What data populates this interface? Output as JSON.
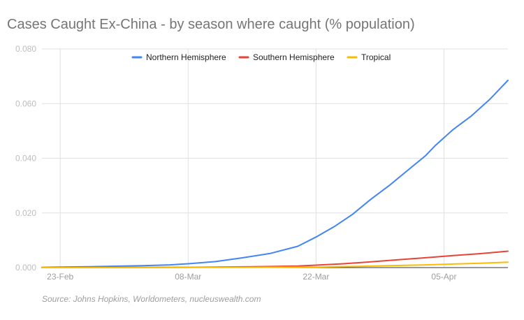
{
  "chart_data": {
    "type": "line",
    "title": "Cases Caught Ex-China - by season where caught (% population)",
    "source": "Source: Johns Hopkins, Worldometers, nucleuswealth.com",
    "xlabel": "",
    "ylabel": "",
    "x_start": "21-Feb",
    "x_end": "12-Apr",
    "x_ticks": [
      "23-Feb",
      "08-Mar",
      "22-Mar",
      "05-Apr"
    ],
    "y_ticks": [
      "0.000",
      "0.020",
      "0.040",
      "0.060",
      "0.080"
    ],
    "ylim": [
      0,
      0.08
    ],
    "grid": true,
    "legend_position": "top",
    "series": [
      {
        "name": "Northern Hemisphere",
        "color": "#4285f4",
        "x": [
          "21-Feb",
          "23-Feb",
          "26-Feb",
          "29-Feb",
          "03-Mar",
          "06-Mar",
          "08-Mar",
          "11-Mar",
          "14-Mar",
          "17-Mar",
          "20-Mar",
          "22-Mar",
          "24-Mar",
          "26-Mar",
          "28-Mar",
          "30-Mar",
          "01-Apr",
          "03-Apr",
          "04-Apr",
          "06-Apr",
          "08-Apr",
          "10-Apr",
          "12-Apr"
        ],
        "values": [
          0.0001,
          0.0002,
          0.0003,
          0.0005,
          0.0007,
          0.001,
          0.0014,
          0.0022,
          0.0036,
          0.0052,
          0.0078,
          0.0112,
          0.015,
          0.0195,
          0.025,
          0.03,
          0.0355,
          0.041,
          0.0445,
          0.0505,
          0.0555,
          0.0615,
          0.0685
        ]
      },
      {
        "name": "Southern Hemisphere",
        "color": "#ea4335",
        "x": [
          "21-Feb",
          "29-Feb",
          "08-Mar",
          "15-Mar",
          "20-Mar",
          "22-Mar",
          "25-Mar",
          "28-Mar",
          "31-Mar",
          "03-Apr",
          "06-Apr",
          "09-Apr",
          "12-Apr"
        ],
        "values": [
          0.0,
          5e-05,
          0.0001,
          0.0003,
          0.0006,
          0.0009,
          0.0014,
          0.0021,
          0.0029,
          0.0036,
          0.0044,
          0.0051,
          0.006
        ]
      },
      {
        "name": "Tropical",
        "color": "#fbbc04",
        "x": [
          "21-Feb",
          "01-Mar",
          "08-Mar",
          "15-Mar",
          "22-Mar",
          "26-Mar",
          "30-Mar",
          "03-Apr",
          "06-Apr",
          "09-Apr",
          "12-Apr"
        ],
        "values": [
          0.0,
          3e-05,
          6e-05,
          0.0001,
          0.0002,
          0.0004,
          0.0007,
          0.001,
          0.0013,
          0.0016,
          0.002
        ]
      }
    ]
  }
}
